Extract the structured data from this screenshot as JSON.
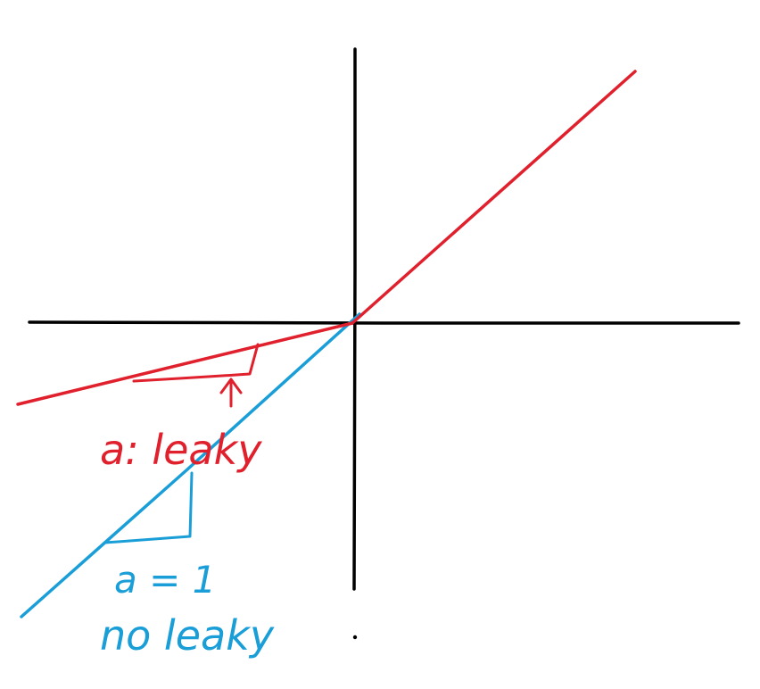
{
  "colors": {
    "axes": "#000000",
    "leaky_relu": "#e0202c",
    "identity_line": "#1a9ed8",
    "background": "#ffffff"
  },
  "labels": {
    "leaky_slope": "a: leaky",
    "identity_slope": "a = 1",
    "identity_caption": "no leaky"
  },
  "icons": {
    "leaky_slope_marker": "up-arrow-icon",
    "stray_mark": "dot-icon"
  }
}
